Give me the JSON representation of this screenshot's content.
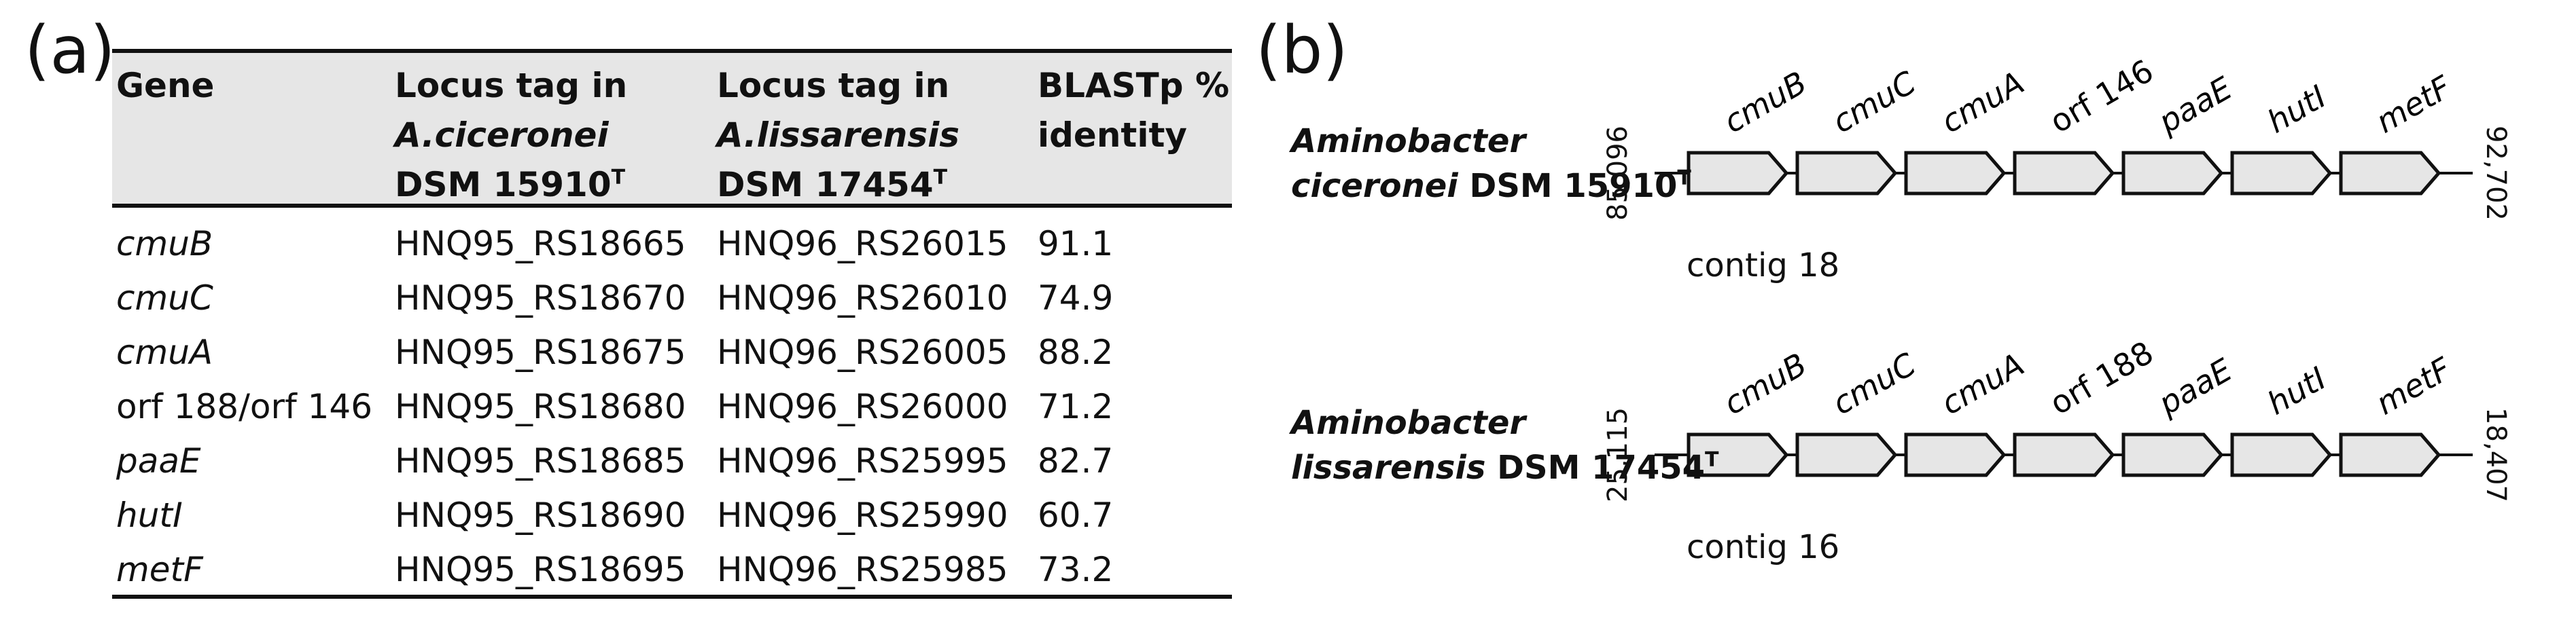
{
  "panels": {
    "a": "(a)",
    "b": "(b)"
  },
  "table": {
    "headers": {
      "gene": "Gene",
      "locus_a_line1": "Locus tag in",
      "locus_a_genus": "A.",
      "locus_a_species": "ciceronei",
      "locus_a_strain": "DSM 15910",
      "locus_b_line1": "Locus tag in",
      "locus_b_genus": "A.",
      "locus_b_species": "lissarensis",
      "locus_b_strain": "DSM 17454",
      "type_mark": "T",
      "blast_line1": "BLASTp %",
      "blast_line2": "identity"
    },
    "rows": [
      {
        "gene": "cmuB",
        "italic": true,
        "locus_a": "HNQ95_RS18665",
        "locus_b": "HNQ96_RS26015",
        "identity": "91.1"
      },
      {
        "gene": "cmuC",
        "italic": true,
        "locus_a": "HNQ95_RS18670",
        "locus_b": "HNQ96_RS26010",
        "identity": "74.9"
      },
      {
        "gene": "cmuA",
        "italic": true,
        "locus_a": "HNQ95_RS18675",
        "locus_b": "HNQ96_RS26005",
        "identity": "88.2"
      },
      {
        "gene": "orf 188/orf 146",
        "italic": false,
        "locus_a": "HNQ95_RS18680",
        "locus_b": "HNQ96_RS26000",
        "identity": "71.2"
      },
      {
        "gene": "paaE",
        "italic": true,
        "locus_a": "HNQ95_RS18685",
        "locus_b": "HNQ96_RS25995",
        "identity": "82.7"
      },
      {
        "gene": "hutI",
        "italic": true,
        "locus_a": "HNQ95_RS18690",
        "locus_b": "HNQ96_RS25990",
        "identity": "60.7"
      },
      {
        "gene": "metF",
        "italic": true,
        "locus_a": "HNQ95_RS18695",
        "locus_b": "HNQ96_RS25985",
        "identity": "73.2"
      }
    ]
  },
  "diagram": {
    "gene_fill": "#e6e6e6",
    "organisms": [
      {
        "genus": "Aminobacter",
        "species": "ciceronei",
        "strain": "DSM 15910",
        "type_mark": "T",
        "start_coord": "85,096",
        "end_coord": "92,702",
        "contig": "contig 18",
        "genes": [
          {
            "label": "cmuB",
            "italic": true
          },
          {
            "label": "cmuC",
            "italic": true
          },
          {
            "label": "cmuA",
            "italic": true
          },
          {
            "label": "orf 146",
            "italic": false
          },
          {
            "label": "paaE",
            "italic": true
          },
          {
            "label": "hutI",
            "italic": true
          },
          {
            "label": "metF",
            "italic": true
          }
        ]
      },
      {
        "genus": "Aminobacter",
        "species": "lissarensis",
        "strain": "DSM 17454",
        "type_mark": "T",
        "start_coord": "25,115",
        "end_coord": "18,407",
        "contig": "contig 16",
        "genes": [
          {
            "label": "cmuB",
            "italic": true
          },
          {
            "label": "cmuC",
            "italic": true
          },
          {
            "label": "cmuA",
            "italic": true
          },
          {
            "label": "orf 188",
            "italic": false
          },
          {
            "label": "paaE",
            "italic": true
          },
          {
            "label": "hutI",
            "italic": true
          },
          {
            "label": "metF",
            "italic": true
          }
        ]
      }
    ]
  }
}
